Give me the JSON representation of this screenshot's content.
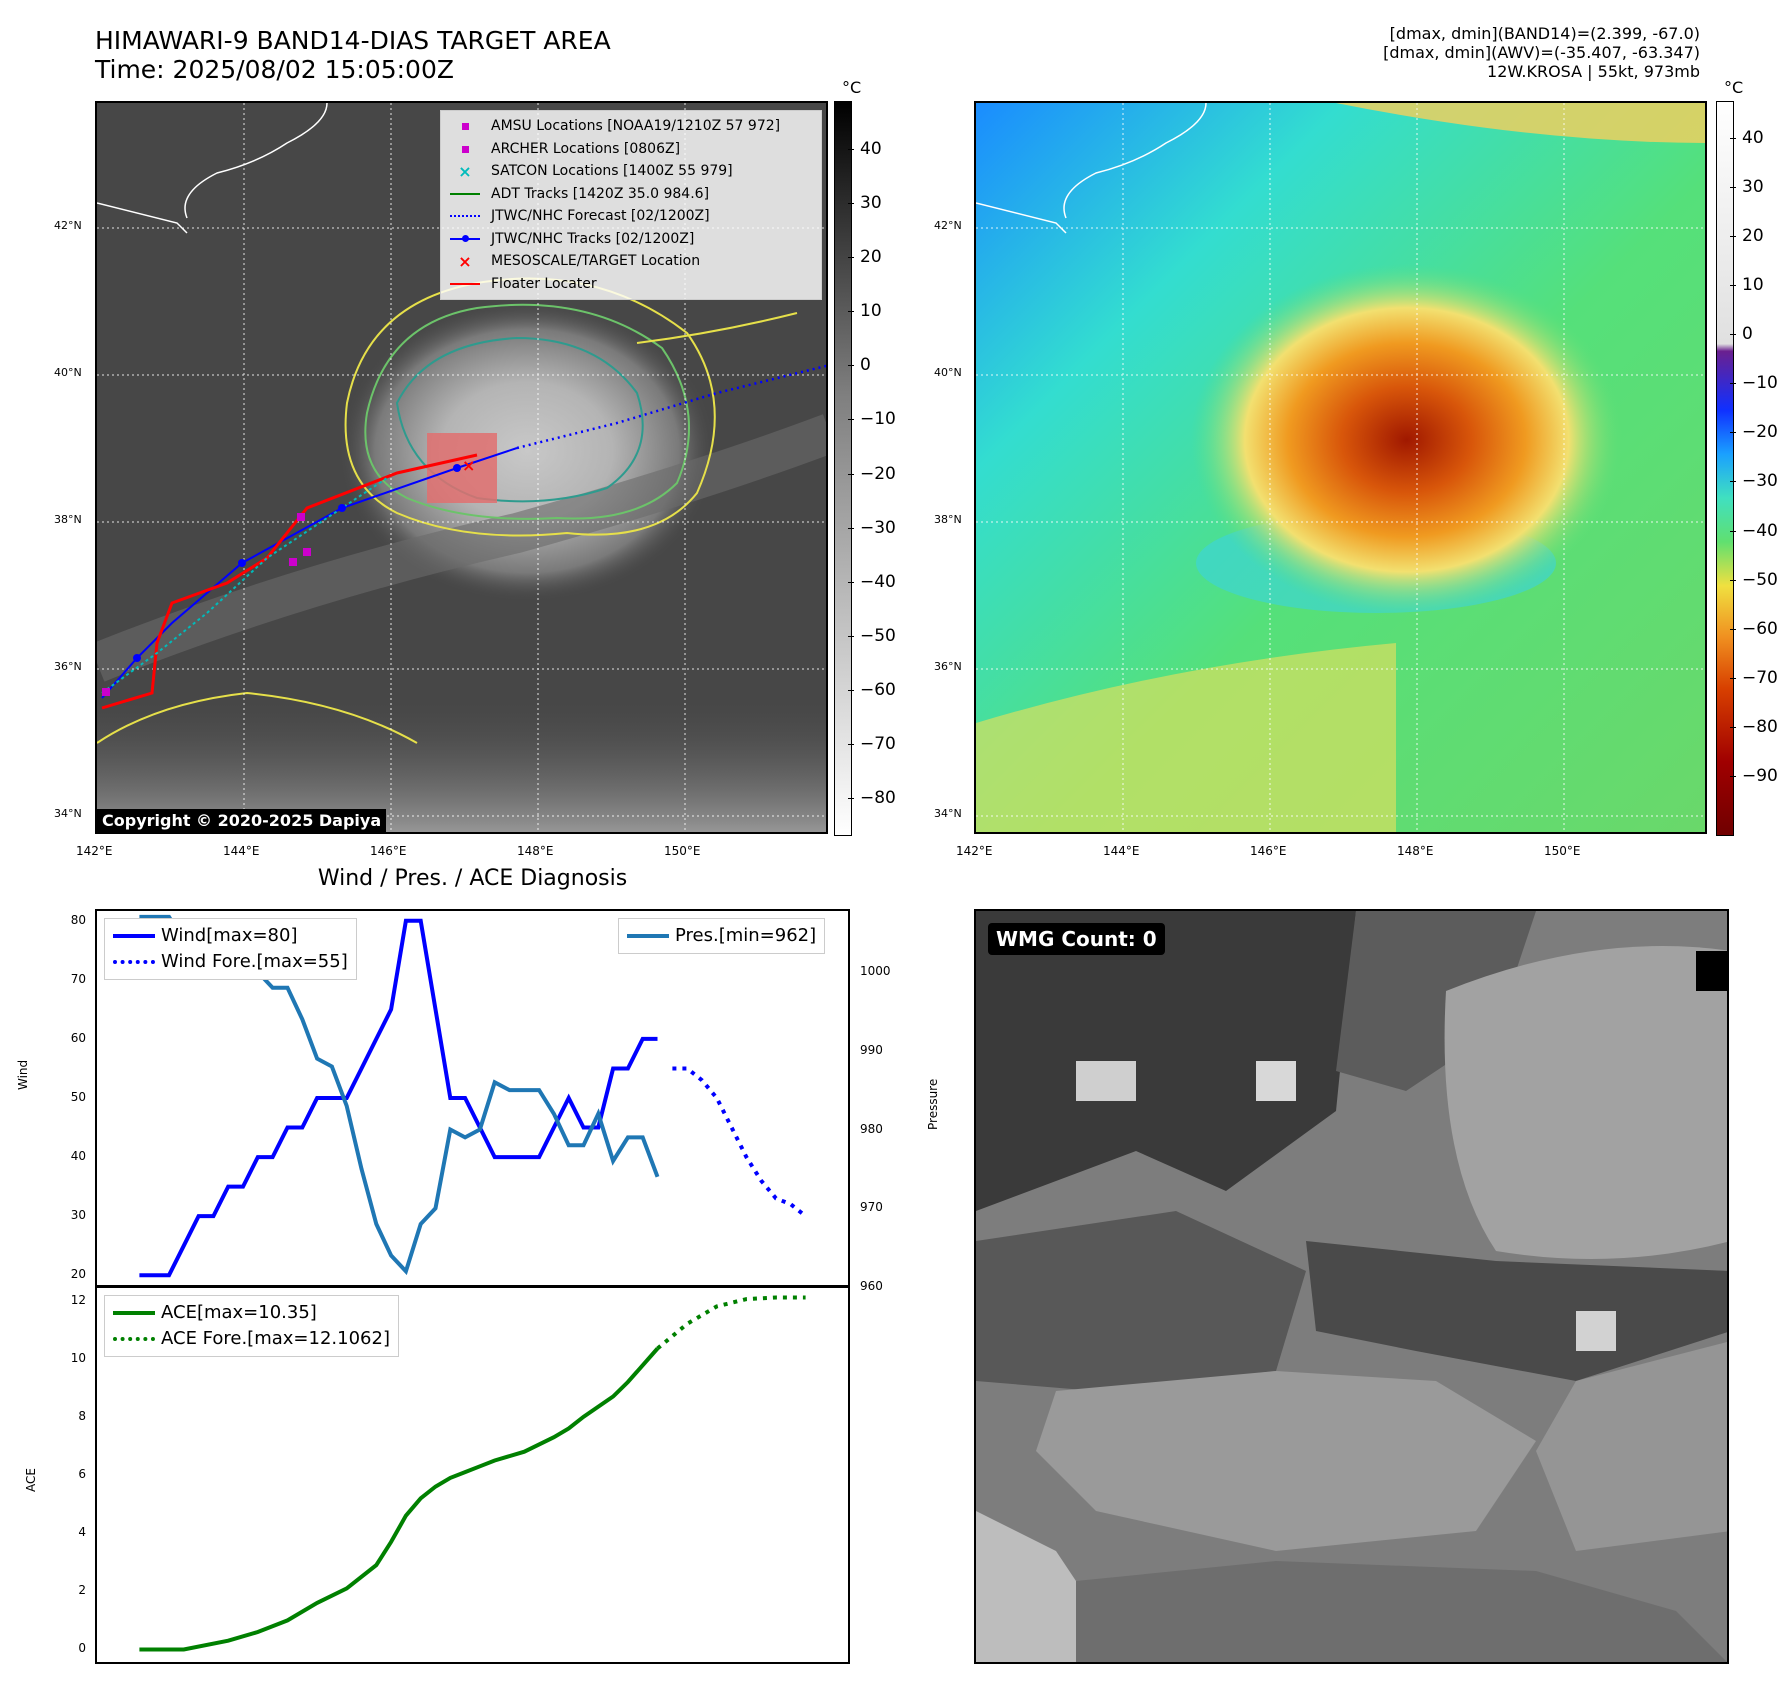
{
  "header": {
    "title_line1": "HIMAWARI-9 BAND14-DIAS TARGET AREA",
    "title_line2": "Time: 2025/08/02 15:05:00Z",
    "right_line1": "[dmax, dmin](BAND14)=(2.399, -67.0)",
    "right_line2": "[dmax, dmin](AWV)=(-35.407, -63.347)",
    "right_line3": "12W.KROSA | 55kt, 973mb"
  },
  "map": {
    "lon_labels": [
      "142°E",
      "144°E",
      "146°E",
      "148°E",
      "150°E"
    ],
    "lat_labels": [
      "42°N",
      "40°N",
      "38°N",
      "36°N",
      "34°N"
    ],
    "copyright": "Copyright © 2020-2025 Dapiya",
    "legend": [
      {
        "label": "AMSU Locations [NOAA19/1210Z 57 972]",
        "color": "#cc00cc",
        "kind": "square"
      },
      {
        "label": "ARCHER Locations [0806Z]",
        "color": "#cc00cc",
        "kind": "square"
      },
      {
        "label": "SATCON Locations [1400Z 55 979]",
        "color": "#00bbbb",
        "kind": "x"
      },
      {
        "label": "ADT Tracks [1420Z 35.0 984.6]",
        "color": "#008000",
        "kind": "line"
      },
      {
        "label": "JTWC/NHC Forecast [02/1200Z]",
        "color": "#0000ff",
        "kind": "dotted"
      },
      {
        "label": "JTWC/NHC Tracks [02/1200Z]",
        "color": "#0000ff",
        "kind": "linedot"
      },
      {
        "label": "MESOSCALE/TARGET Location",
        "color": "#ff0000",
        "kind": "x"
      },
      {
        "label": "Floater Locater",
        "color": "#ff0000",
        "kind": "line"
      }
    ]
  },
  "colorbar_left": {
    "unit": "°C",
    "ticks": [
      "40",
      "30",
      "20",
      "10",
      "0",
      "−10",
      "−20",
      "−30",
      "−40",
      "−50",
      "−60",
      "−70",
      "−80"
    ]
  },
  "colorbar_right": {
    "unit": "°C",
    "ticks": [
      "40",
      "30",
      "20",
      "10",
      "0",
      "−10",
      "−20",
      "−30",
      "−40",
      "−50",
      "−60",
      "−70",
      "−80",
      "−90"
    ]
  },
  "wmg": {
    "label": "WMG Count: 0"
  },
  "chart_data": [
    {
      "type": "line",
      "title": "Wind / Pres. / ACE Diagnosis",
      "ylabel": "Wind",
      "ylim": [
        18,
        82
      ],
      "yticks": [
        20,
        30,
        40,
        50,
        60,
        70,
        80
      ],
      "series": [
        {
          "name": "Wind[max=80]",
          "color": "#0000ff",
          "style": "solid",
          "x": [
            0,
            1,
            2,
            3,
            4,
            5,
            6,
            7,
            8,
            9,
            10,
            11,
            12,
            13,
            14,
            15,
            16,
            17,
            18,
            19,
            20,
            21,
            22,
            23,
            24,
            25,
            26,
            27,
            28,
            29,
            30,
            31,
            32,
            33,
            34,
            35
          ],
          "values": [
            20,
            20,
            20,
            25,
            30,
            30,
            35,
            35,
            40,
            40,
            45,
            45,
            50,
            50,
            50,
            55,
            60,
            65,
            80,
            80,
            65,
            50,
            50,
            45,
            40,
            40,
            40,
            40,
            45,
            50,
            45,
            45,
            55,
            55,
            60,
            60
          ]
        },
        {
          "name": "Wind Fore.[max=55]",
          "color": "#0000ff",
          "style": "dotted",
          "x": [
            36,
            37,
            38,
            39,
            40,
            41,
            42,
            43,
            44,
            45
          ],
          "values": [
            55,
            55,
            53,
            50,
            45,
            40,
            36,
            33,
            32,
            30
          ]
        }
      ]
    },
    {
      "type": "line",
      "ylabel": "Pressure",
      "ylim": [
        960,
        1008
      ],
      "yticks": [
        960,
        970,
        980,
        990,
        1000
      ],
      "series": [
        {
          "name": "Pres.[min=962]",
          "color": "#1f77b4",
          "style": "solid",
          "x": [
            0,
            1,
            2,
            3,
            4,
            5,
            6,
            7,
            8,
            9,
            10,
            11,
            12,
            13,
            14,
            15,
            16,
            17,
            18,
            19,
            20,
            21,
            22,
            23,
            24,
            25,
            26,
            27,
            28,
            29,
            30,
            31,
            32,
            33,
            34,
            35
          ],
          "values": [
            1007,
            1007,
            1007,
            1004,
            1004,
            1003,
            1003,
            1000,
            1000,
            998,
            998,
            994,
            989,
            988,
            983,
            975,
            968,
            964,
            962,
            968,
            970,
            980,
            979,
            980,
            986,
            985,
            985,
            985,
            982,
            978,
            978,
            982,
            976,
            979,
            979,
            974
          ]
        }
      ]
    },
    {
      "type": "line",
      "ylabel": "ACE",
      "ylim": [
        -0.5,
        12.5
      ],
      "yticks": [
        0,
        2,
        4,
        6,
        8,
        10,
        12
      ],
      "series": [
        {
          "name": "ACE[max=10.35]",
          "color": "#008000",
          "style": "solid",
          "x": [
            0,
            3,
            6,
            8,
            10,
            12,
            14,
            16,
            17,
            18,
            19,
            20,
            21,
            22,
            23,
            24,
            26,
            28,
            29,
            30,
            32,
            33,
            35
          ],
          "values": [
            0,
            0,
            0.3,
            0.6,
            1.0,
            1.6,
            2.1,
            2.9,
            3.7,
            4.6,
            5.2,
            5.6,
            5.9,
            6.1,
            6.3,
            6.5,
            6.8,
            7.3,
            7.6,
            8.0,
            8.7,
            9.2,
            10.35
          ]
        },
        {
          "name": "ACE Fore.[max=12.1062]",
          "color": "#008000",
          "style": "dotted",
          "x": [
            35,
            37,
            39,
            41,
            43,
            45
          ],
          "values": [
            10.35,
            11.2,
            11.8,
            12.05,
            12.1062,
            12.1062
          ]
        }
      ]
    }
  ]
}
